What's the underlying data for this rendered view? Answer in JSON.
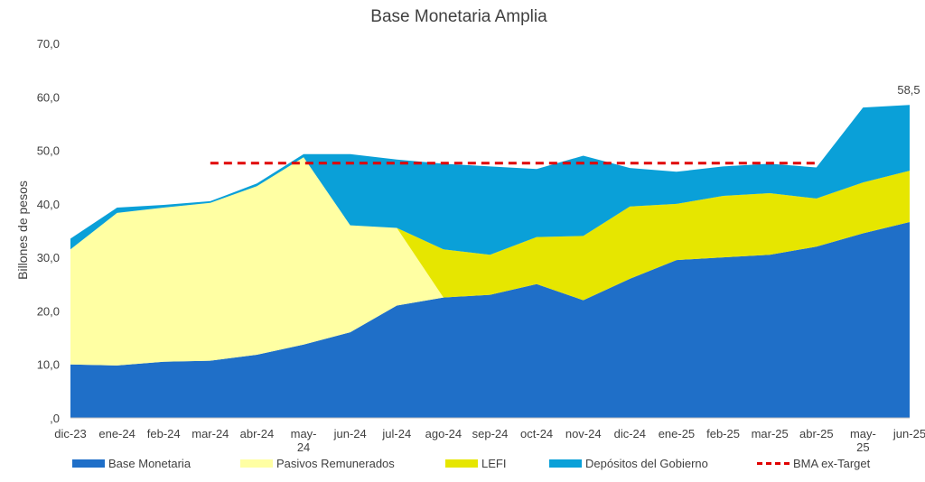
{
  "chart_data": {
    "type": "area",
    "title": "Base Monetaria Amplia",
    "ylabel": "Billones de pesos",
    "ylim": [
      0,
      70
    ],
    "yticks": [
      ",0",
      "10,0",
      "20,0",
      "30,0",
      "40,0",
      "50,0",
      "60,0",
      "70,0"
    ],
    "stacked": true,
    "categories": [
      "dic-23",
      "ene-24",
      "feb-24",
      "mar-24",
      "abr-24",
      "may-24",
      "jun-24",
      "jul-24",
      "ago-24",
      "sep-24",
      "oct-24",
      "nov-24",
      "dic-24",
      "ene-25",
      "feb-25",
      "mar-25",
      "abr-25",
      "may-25",
      "jun-25"
    ],
    "series": [
      {
        "name": "Base Monetaria",
        "color": "#1f6fc8",
        "values": [
          10.0,
          9.8,
          10.5,
          10.7,
          11.8,
          13.7,
          16.0,
          21.0,
          22.5,
          23.0,
          25.0,
          22.0,
          26.0,
          29.5,
          30.0,
          30.5,
          32.0,
          34.5,
          36.6
        ]
      },
      {
        "name": "Pasivos Remunerados",
        "color": "#ffffa3",
        "values": [
          21.5,
          28.5,
          28.8,
          29.5,
          31.5,
          35.0,
          20.0,
          14.5,
          0,
          0,
          0,
          0,
          0,
          0,
          0,
          0,
          0,
          0,
          0
        ]
      },
      {
        "name": "LEFI",
        "color": "#e6e600",
        "values": [
          0,
          0,
          0,
          0,
          0,
          0,
          0,
          0,
          9.0,
          7.5,
          8.8,
          12.0,
          13.5,
          10.5,
          11.5,
          11.5,
          9.0,
          9.5,
          9.6
        ]
      },
      {
        "name": "Depósitos del Gobierno",
        "color": "#0aa0d8",
        "values": [
          2.0,
          1.0,
          0.5,
          0.3,
          0.5,
          0.6,
          13.3,
          12.8,
          16.0,
          16.5,
          12.7,
          15.0,
          7.2,
          6.0,
          5.5,
          5.5,
          5.8,
          14.0,
          12.3
        ]
      },
      {
        "name": "BMA ex-Target",
        "color": "#e00000",
        "style": "dashed",
        "value": 47.6,
        "x_range": [
          "mar-24",
          "abr-25"
        ]
      }
    ],
    "annotations": [
      {
        "text": "58,5",
        "at": "jun-25"
      }
    ],
    "legend_position": "bottom",
    "grid": false
  },
  "xtick_labels": [
    {
      "l1": "dic-23",
      "l2": ""
    },
    {
      "l1": "ene-24",
      "l2": ""
    },
    {
      "l1": "feb-24",
      "l2": ""
    },
    {
      "l1": "mar-24",
      "l2": ""
    },
    {
      "l1": "abr-24",
      "l2": ""
    },
    {
      "l1": "may-",
      "l2": "24"
    },
    {
      "l1": "jun-24",
      "l2": ""
    },
    {
      "l1": "jul-24",
      "l2": ""
    },
    {
      "l1": "ago-24",
      "l2": ""
    },
    {
      "l1": "sep-24",
      "l2": ""
    },
    {
      "l1": "oct-24",
      "l2": ""
    },
    {
      "l1": "nov-24",
      "l2": ""
    },
    {
      "l1": "dic-24",
      "l2": ""
    },
    {
      "l1": "ene-25",
      "l2": ""
    },
    {
      "l1": "feb-25",
      "l2": ""
    },
    {
      "l1": "mar-25",
      "l2": ""
    },
    {
      "l1": "abr-25",
      "l2": ""
    },
    {
      "l1": "may-",
      "l2": "25"
    },
    {
      "l1": "jun-25",
      "l2": ""
    }
  ]
}
